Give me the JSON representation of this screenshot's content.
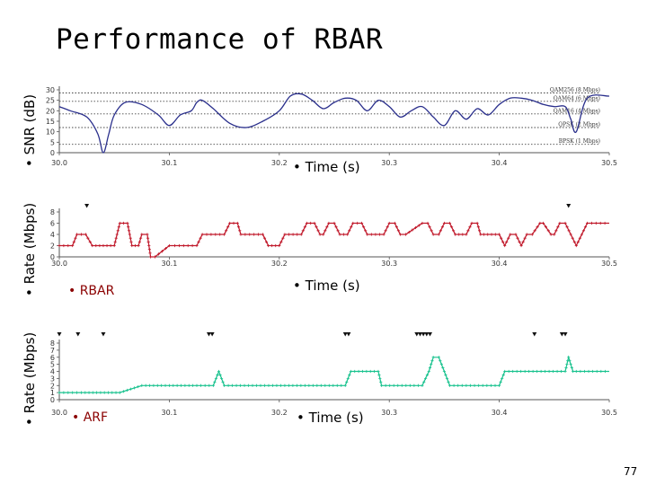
{
  "slide": {
    "title": "Performance of RBAR",
    "page_number": "77"
  },
  "labels": {
    "snr_axis": "• SNR (dB)",
    "rate_axis_top": "• Rate (Mbps)",
    "rate_axis_bottom": "• Rate (Mbps)",
    "time_1": "• Time (s)",
    "time_2": "• Time (s)",
    "time_3": "• Time (s)",
    "rbar": "• RBAR",
    "arf": "• ARF"
  },
  "colors": {
    "snr": "#2a2f8c",
    "rbar": "#c0182a",
    "arf": "#19c28e",
    "threshold": "#444444"
  },
  "chart_data": [
    {
      "type": "line",
      "title": "SNR",
      "ylabel": "SNR (dB)",
      "xlabel": "Time (s)",
      "xlim": [
        30.0,
        30.5
      ],
      "ylim": [
        0,
        30
      ],
      "x_ticks": [
        "30.0",
        "30.1",
        "30.2",
        "30.3",
        "30.4",
        "30.5"
      ],
      "y_ticks": [
        "0",
        "5",
        "10",
        "15",
        "20",
        "25",
        "30"
      ],
      "thresholds": [
        {
          "label": "QAM256 (8 Mbps)",
          "value": 28.5
        },
        {
          "label": "QAM64 (6 Mbps)",
          "value": 24.5
        },
        {
          "label": "QAM16 (4 Mbps)",
          "value": 18.5
        },
        {
          "label": "QPSK (2 Mbps)",
          "value": 12
        },
        {
          "label": "BPSK (1 Mbps)",
          "value": 4
        }
      ],
      "series": [
        {
          "name": "SNR",
          "x": [
            30.0,
            30.01,
            30.025,
            30.035,
            30.04,
            30.045,
            30.05,
            30.06,
            30.075,
            30.09,
            30.1,
            30.11,
            30.12,
            30.125,
            30.13,
            30.14,
            30.155,
            30.17,
            30.185,
            30.2,
            30.21,
            30.22,
            30.23,
            30.24,
            30.25,
            30.26,
            30.27,
            30.28,
            30.29,
            30.3,
            30.31,
            30.32,
            30.33,
            30.34,
            30.35,
            30.36,
            30.37,
            30.38,
            30.39,
            30.4,
            30.41,
            30.42,
            30.43,
            30.44,
            30.45,
            30.46,
            30.465,
            30.47,
            30.48,
            30.5
          ],
          "y": [
            22,
            20,
            17,
            9,
            0,
            9,
            18,
            24,
            23,
            18,
            13,
            18,
            20,
            24,
            25,
            21,
            14,
            12,
            15,
            20,
            27,
            28,
            25,
            21,
            24,
            26,
            25,
            20,
            25,
            22,
            17,
            20,
            22,
            17,
            13,
            20,
            16,
            21,
            18,
            23,
            26,
            26,
            25,
            23,
            22,
            22,
            16,
            10,
            26,
            27
          ]
        }
      ],
      "markers": []
    },
    {
      "type": "line",
      "title": "RBAR",
      "ylabel": "Rate (Mbps)",
      "xlabel": "Time (s)",
      "xlim": [
        30.0,
        30.5
      ],
      "ylim": [
        0,
        8
      ],
      "x_ticks": [
        "30.0",
        "30.1",
        "30.2",
        "30.3",
        "30.4",
        "30.5"
      ],
      "y_ticks": [
        "0",
        "2",
        "4",
        "6",
        "8"
      ],
      "series": [
        {
          "name": "RBAR",
          "x": [
            30.0,
            30.012,
            30.016,
            30.024,
            30.03,
            30.04,
            30.05,
            30.055,
            30.062,
            30.066,
            30.072,
            30.075,
            30.08,
            30.083,
            30.087,
            30.1,
            30.105,
            30.125,
            30.13,
            30.15,
            30.155,
            30.162,
            30.165,
            30.185,
            30.19,
            30.2,
            30.205,
            30.22,
            30.225,
            30.232,
            30.237,
            30.24,
            30.245,
            30.25,
            30.255,
            30.262,
            30.267,
            30.275,
            30.28,
            30.295,
            30.3,
            30.305,
            30.31,
            30.315,
            30.33,
            30.335,
            30.34,
            30.345,
            30.35,
            30.355,
            30.36,
            30.37,
            30.375,
            30.38,
            30.383,
            30.386,
            30.4,
            30.405,
            30.41,
            30.415,
            30.42,
            30.425,
            30.43,
            30.437,
            30.44,
            30.447,
            30.45,
            30.455,
            30.46,
            30.47,
            30.475,
            30.48,
            30.5
          ],
          "y": [
            2,
            2,
            4,
            4,
            2,
            2,
            2,
            6,
            6,
            2,
            2,
            4,
            4,
            0,
            0,
            2,
            2,
            2,
            4,
            4,
            6,
            6,
            4,
            4,
            2,
            2,
            4,
            4,
            6,
            6,
            4,
            4,
            6,
            6,
            4,
            4,
            6,
            6,
            4,
            4,
            6,
            6,
            4,
            4,
            6,
            6,
            4,
            4,
            6,
            6,
            4,
            4,
            6,
            6,
            4,
            4,
            4,
            2,
            4,
            4,
            2,
            4,
            4,
            6,
            6,
            4,
            4,
            6,
            6,
            2,
            4,
            6,
            6
          ]
        }
      ],
      "markers": [
        30.025,
        30.463
      ]
    },
    {
      "type": "line",
      "title": "ARF",
      "ylabel": "Rate (Mbps)",
      "xlabel": "Time (s)",
      "xlim": [
        30.0,
        30.5
      ],
      "ylim": [
        0,
        8
      ],
      "x_ticks": [
        "30.0",
        "30.1",
        "30.2",
        "30.3",
        "30.4",
        "30.5"
      ],
      "y_ticks": [
        "0",
        "1",
        "2",
        "3",
        "4",
        "5",
        "6",
        "7",
        "8"
      ],
      "series": [
        {
          "name": "ARF",
          "x": [
            30.0,
            30.02,
            30.055,
            30.065,
            30.075,
            30.125,
            30.14,
            30.145,
            30.15,
            30.26,
            30.265,
            30.29,
            30.293,
            30.33,
            30.336,
            30.34,
            30.345,
            30.35,
            30.355,
            30.4,
            30.405,
            30.46,
            30.463,
            30.467,
            30.47,
            30.5
          ],
          "y": [
            1,
            1,
            1,
            1.5,
            2,
            2,
            2,
            4,
            2,
            2,
            4,
            4,
            2,
            2,
            4,
            6,
            6,
            4,
            2,
            2,
            4,
            4,
            6,
            4,
            4,
            4
          ]
        }
      ],
      "markers": [
        30.0,
        30.017,
        30.04,
        30.136,
        30.139,
        30.26,
        30.263,
        30.325,
        30.328,
        30.331,
        30.334,
        30.337,
        30.432,
        30.457,
        30.46
      ]
    }
  ]
}
